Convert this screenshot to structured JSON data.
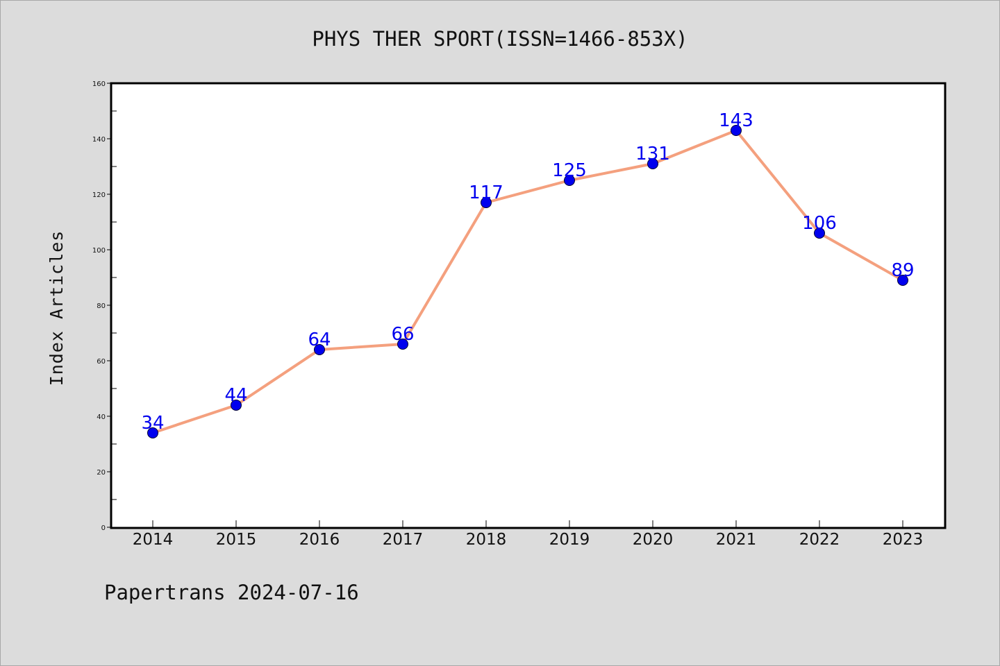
{
  "chart_data": {
    "type": "line",
    "title": "PHYS THER SPORT(ISSN=1466-853X)",
    "xlabel": "",
    "ylabel": "Index Articles",
    "categories": [
      "2014",
      "2015",
      "2016",
      "2017",
      "2018",
      "2019",
      "2020",
      "2021",
      "2022",
      "2023"
    ],
    "series": [
      {
        "values": [
          34,
          44,
          64,
          66,
          117,
          125,
          131,
          143,
          106,
          89
        ]
      }
    ],
    "ylim": [
      0,
      160
    ],
    "yticks": [
      0,
      20,
      40,
      60,
      80,
      100,
      120,
      140,
      160
    ],
    "grid": false,
    "show_data_labels": true
  },
  "footer": {
    "text": "Papertrans 2024-07-16"
  },
  "colors": {
    "background": "#dcdcdc",
    "plot_background": "#ffffff",
    "line": "#f4a07e",
    "marker": "#0000ee",
    "data_label": "#0000ee"
  }
}
